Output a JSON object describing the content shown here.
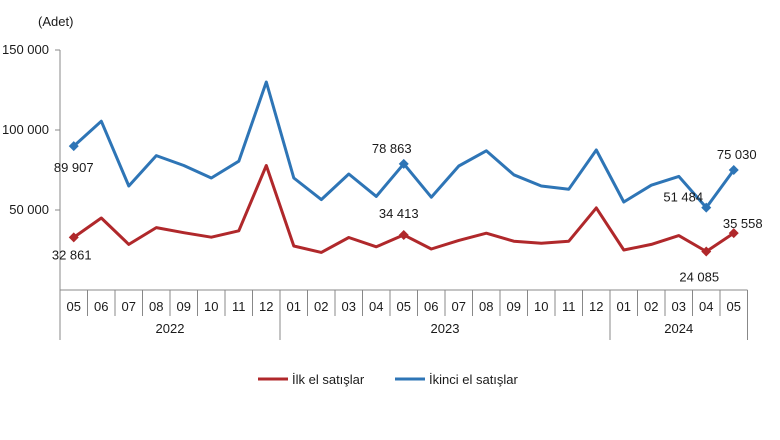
{
  "chart_data": {
    "type": "line",
    "unit_label": "(Adet)",
    "ylim": [
      0,
      150000
    ],
    "yticks": [
      50000,
      100000,
      150000
    ],
    "ytick_labels": [
      "50 000",
      "100 000",
      "150 000"
    ],
    "grid": false,
    "legend_position": "bottom",
    "months": [
      "05",
      "06",
      "07",
      "08",
      "09",
      "10",
      "11",
      "12",
      "01",
      "02",
      "03",
      "04",
      "05",
      "06",
      "07",
      "08",
      "09",
      "10",
      "11",
      "12",
      "01",
      "02",
      "03",
      "04",
      "05"
    ],
    "years": [
      {
        "label": "2022",
        "start": 0,
        "end": 7
      },
      {
        "label": "2023",
        "start": 8,
        "end": 19
      },
      {
        "label": "2024",
        "start": 20,
        "end": 24
      }
    ],
    "series": [
      {
        "name": "İlk el satışlar",
        "color": "#b0282b",
        "values": [
          32861,
          45000,
          28500,
          39000,
          35800,
          33000,
          37000,
          77800,
          27500,
          23500,
          32800,
          27000,
          34413,
          25600,
          31000,
          35500,
          30500,
          29200,
          30500,
          51300,
          25000,
          28500,
          34000,
          24085,
          35558
        ],
        "labels": [
          {
            "index": 0,
            "text": "32 861"
          },
          {
            "index": 12,
            "text": "34 413"
          },
          {
            "index": 23,
            "text": "24 085"
          },
          {
            "index": 24,
            "text": "35 558"
          }
        ]
      },
      {
        "name": "İkinci el satışlar",
        "color": "#2e75b6",
        "values": [
          89907,
          105500,
          65000,
          84000,
          77800,
          70000,
          80500,
          130000,
          70000,
          56500,
          72500,
          58500,
          78863,
          58000,
          77500,
          87000,
          72000,
          65000,
          63000,
          87500,
          55000,
          65500,
          71000,
          51484,
          75030
        ],
        "labels": [
          {
            "index": 0,
            "text": "89 907"
          },
          {
            "index": 12,
            "text": "78 863"
          },
          {
            "index": 23,
            "text": "51 484"
          },
          {
            "index": 24,
            "text": "75 030"
          }
        ]
      }
    ]
  }
}
